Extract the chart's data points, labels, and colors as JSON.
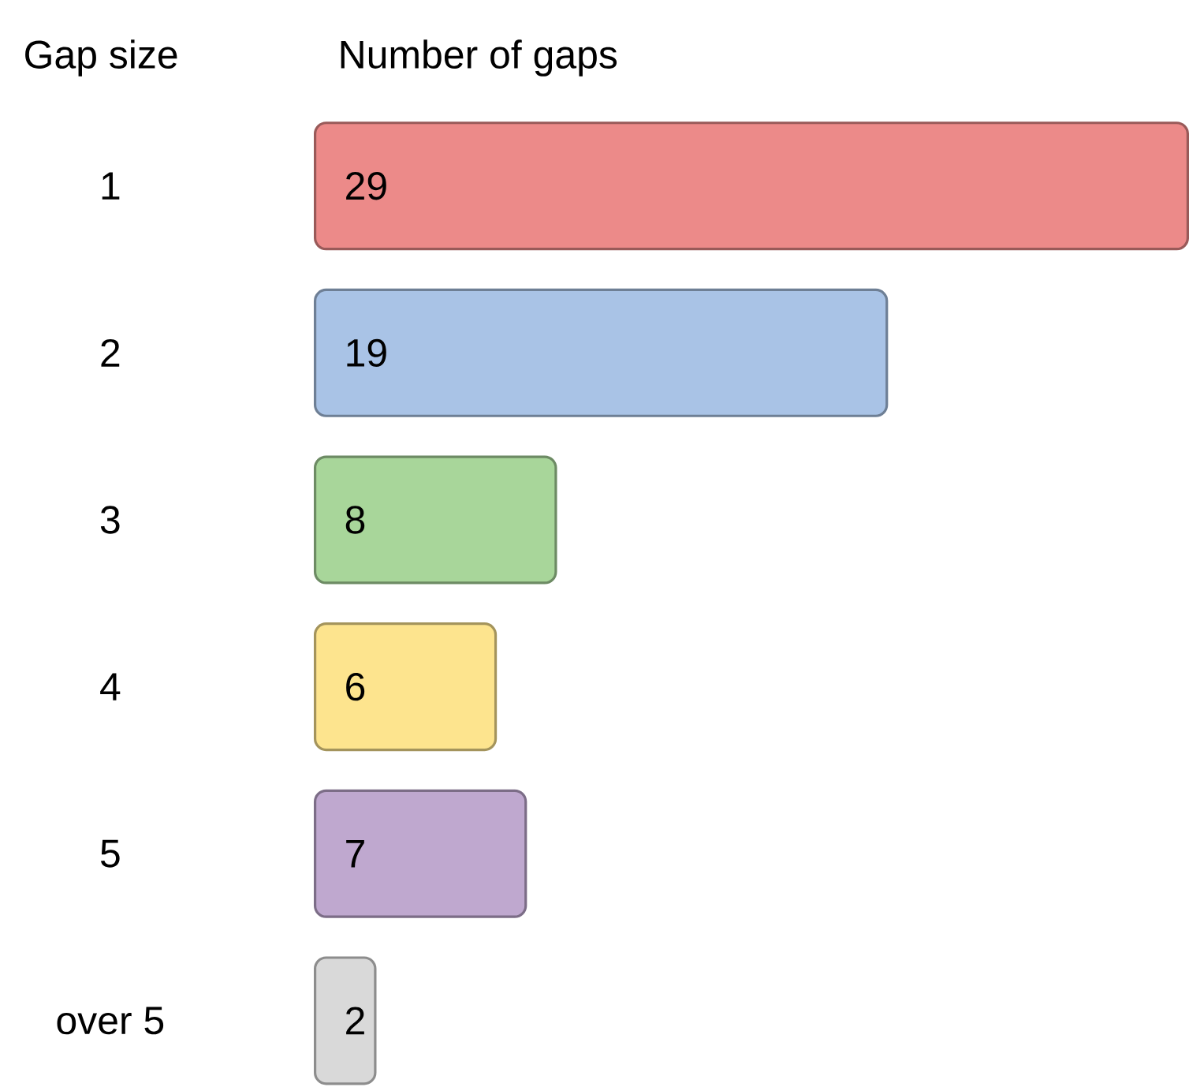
{
  "chart_data": {
    "type": "bar",
    "orientation": "horizontal",
    "xlabel": "Number of gaps",
    "ylabel": "Gap size",
    "categories": [
      "1",
      "2",
      "3",
      "4",
      "5",
      "over 5"
    ],
    "values": [
      29,
      19,
      8,
      6,
      7,
      2
    ],
    "colors": [
      "#ec8a89",
      "#a9c3e6",
      "#a8d69a",
      "#fde48e",
      "#bfa8cf",
      "#d9d9d9"
    ],
    "data_labels": true
  }
}
